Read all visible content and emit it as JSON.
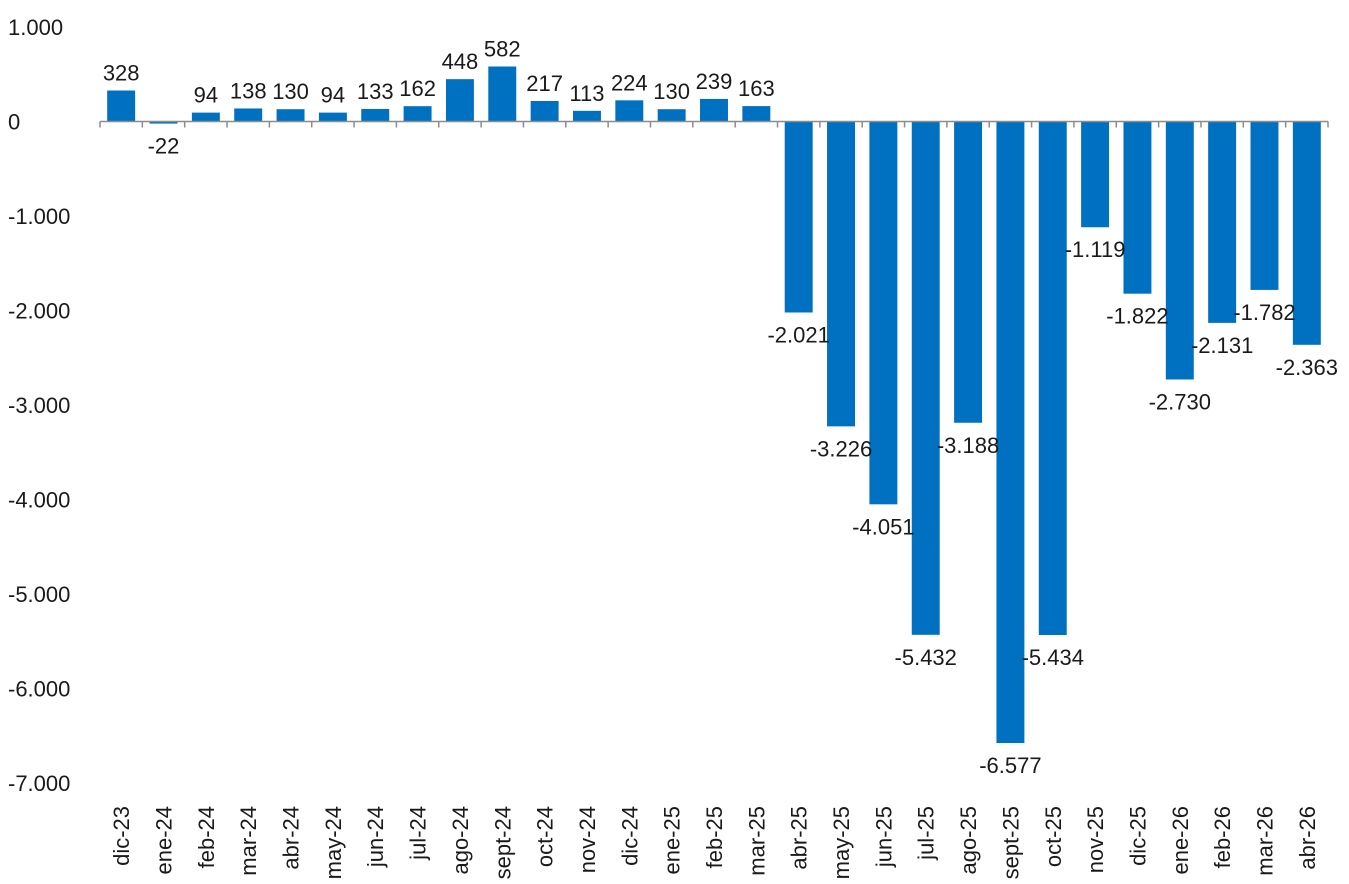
{
  "chart_data": {
    "type": "bar",
    "categories": [
      "dic-23",
      "ene-24",
      "feb-24",
      "mar-24",
      "abr-24",
      "may-24",
      "jun-24",
      "jul-24",
      "ago-24",
      "sept-24",
      "oct-24",
      "nov-24",
      "dic-24",
      "ene-25",
      "feb-25",
      "mar-25",
      "abr-25",
      "may-25",
      "jun-25",
      "jul-25",
      "ago-25",
      "sept-25",
      "oct-25",
      "nov-25",
      "dic-25",
      "ene-26",
      "feb-26",
      "mar-26",
      "abr-26"
    ],
    "values": [
      328,
      -22,
      94,
      138,
      130,
      94,
      133,
      162,
      448,
      582,
      217,
      113,
      224,
      130,
      239,
      163,
      -2021,
      -3226,
      -4051,
      -5432,
      -3188,
      -6577,
      -5434,
      -1119,
      -1822,
      -2730,
      -2131,
      -1782,
      -2363
    ],
    "value_labels": [
      "328",
      "-22",
      "94",
      "138",
      "130",
      "94",
      "133",
      "162",
      "448",
      "582",
      "217",
      "113",
      "224",
      "130",
      "239",
      "163",
      "-2.021",
      "-3.226",
      "-4.051",
      "-5.432",
      "-3.188",
      "-6.577",
      "-5.434",
      "-1.119",
      "-1.822",
      "-2.730",
      "-2.131",
      "-1.782",
      "-2.363"
    ],
    "y_ticks": [
      1000,
      0,
      -1000,
      -2000,
      -3000,
      -4000,
      -5000,
      -6000,
      -7000
    ],
    "y_tick_labels": [
      "1.000",
      "0",
      "-1.000",
      "-2.000",
      "-3.000",
      "-4.000",
      "-5.000",
      "-6.000",
      "-7.000"
    ],
    "ylim": [
      -7000,
      1000
    ],
    "title": "",
    "xlabel": "",
    "ylabel": "",
    "grid": false,
    "legend": "none",
    "bar_color": "#0070C0"
  }
}
